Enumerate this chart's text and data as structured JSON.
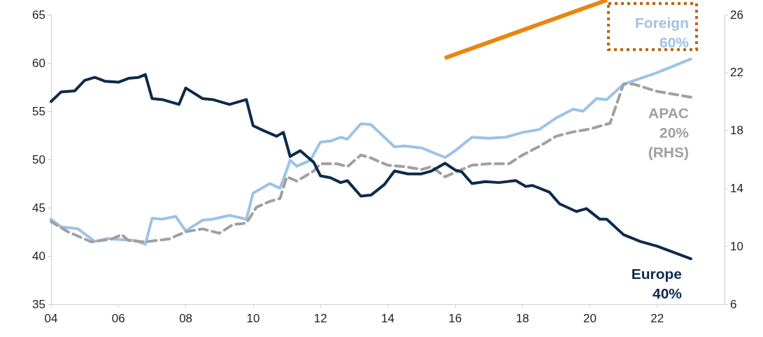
{
  "chart_data": {
    "type": "line",
    "xlim": [
      2004,
      2024
    ],
    "xticks": [
      {
        "value": 2004,
        "label": "04"
      },
      {
        "value": 2006,
        "label": "06"
      },
      {
        "value": 2008,
        "label": "08"
      },
      {
        "value": 2010,
        "label": "10"
      },
      {
        "value": 2012,
        "label": "12"
      },
      {
        "value": 2014,
        "label": "14"
      },
      {
        "value": 2016,
        "label": "16"
      },
      {
        "value": 2018,
        "label": "18"
      },
      {
        "value": 2020,
        "label": "20"
      },
      {
        "value": 2022,
        "label": "22"
      }
    ],
    "ylim": [
      35,
      65
    ],
    "yticks": [
      35,
      40,
      45,
      50,
      55,
      60,
      65
    ],
    "y2lim": [
      6,
      26
    ],
    "y2ticks": [
      6,
      10,
      14,
      18,
      22,
      26
    ],
    "grid": false,
    "marker": "none",
    "series": [
      {
        "name": "Foreign\n60%",
        "color": "#9dc3e6",
        "line_style": "solid",
        "x": [
          2004.0,
          2004.3,
          2004.8,
          2005.3,
          2005.7,
          2006.0,
          2006.5,
          2006.8,
          2007.0,
          2007.3,
          2007.7,
          2008.0,
          2008.5,
          2008.8,
          2009.3,
          2009.8,
          2010.0,
          2010.5,
          2010.8,
          2011.1,
          2011.3,
          2011.7,
          2012.0,
          2012.3,
          2012.6,
          2012.8,
          2013.2,
          2013.5,
          2014.2,
          2014.5,
          2015.0,
          2015.7,
          2016.0,
          2016.5,
          2017.0,
          2017.5,
          2018.0,
          2018.5,
          2019.0,
          2019.5,
          2019.8,
          2020.2,
          2020.5,
          2021.0,
          2022.0,
          2023.0
        ],
        "values": [
          43.8,
          43.0,
          42.8,
          41.5,
          41.8,
          41.7,
          41.6,
          41.2,
          43.9,
          43.8,
          44.1,
          42.6,
          43.7,
          43.8,
          44.2,
          43.8,
          46.5,
          47.5,
          47.0,
          49.9,
          49.3,
          49.9,
          51.8,
          51.9,
          52.3,
          52.1,
          53.7,
          53.6,
          51.3,
          51.4,
          51.2,
          50.2,
          50.9,
          52.3,
          52.2,
          52.3,
          52.8,
          53.1,
          54.3,
          55.2,
          55.0,
          56.3,
          56.2,
          57.8,
          59.0,
          60.4
        ]
      },
      {
        "name": "APAC\n20%\n(RHS)",
        "color": "#a0a0a0",
        "line_style": "dashed",
        "axis": "y2",
        "x": [
          2004.0,
          2004.5,
          2005.2,
          2005.8,
          2006.1,
          2006.3,
          2006.8,
          2007.5,
          2008.0,
          2008.5,
          2009.0,
          2009.4,
          2009.8,
          2010.1,
          2010.5,
          2010.8,
          2011.0,
          2011.3,
          2011.8,
          2012.0,
          2012.5,
          2012.8,
          2013.2,
          2013.5,
          2014.0,
          2014.5,
          2015.0,
          2015.3,
          2015.7,
          2016.0,
          2016.5,
          2017.0,
          2017.6,
          2018.0,
          2018.5,
          2019.0,
          2019.5,
          2020.0,
          2020.6,
          2021.0,
          2021.3,
          2022.0,
          2023.0
        ],
        "values": [
          11.7,
          11.0,
          10.3,
          10.5,
          10.8,
          10.4,
          10.3,
          10.5,
          11.0,
          11.2,
          10.9,
          11.5,
          11.6,
          12.7,
          13.1,
          13.3,
          14.8,
          14.5,
          15.2,
          15.7,
          15.7,
          15.5,
          16.3,
          16.1,
          15.6,
          15.5,
          15.3,
          15.5,
          14.8,
          15.1,
          15.6,
          15.7,
          15.7,
          16.3,
          16.9,
          17.6,
          17.9,
          18.1,
          18.5,
          21.2,
          21.2,
          20.7,
          20.3
        ]
      },
      {
        "name": "Europe\n40%",
        "color": "#0d2a4a",
        "line_style": "solid",
        "x": [
          2004.0,
          2004.3,
          2004.7,
          2005.0,
          2005.3,
          2005.6,
          2006.0,
          2006.3,
          2006.6,
          2006.8,
          2007.0,
          2007.3,
          2007.8,
          2008.0,
          2008.5,
          2008.8,
          2009.3,
          2009.8,
          2010.0,
          2010.3,
          2010.7,
          2010.9,
          2011.1,
          2011.4,
          2011.8,
          2012.0,
          2012.3,
          2012.6,
          2012.8,
          2013.2,
          2013.5,
          2013.9,
          2014.2,
          2014.6,
          2015.0,
          2015.3,
          2015.7,
          2016.0,
          2016.2,
          2016.5,
          2016.9,
          2017.3,
          2017.8,
          2018.1,
          2018.3,
          2018.8,
          2019.1,
          2019.6,
          2019.9,
          2020.3,
          2020.5,
          2021.0,
          2021.5,
          2022.0,
          2023.0
        ],
        "values": [
          56.0,
          57.0,
          57.1,
          58.2,
          58.5,
          58.1,
          58.0,
          58.4,
          58.5,
          58.8,
          56.3,
          56.2,
          55.7,
          57.4,
          56.3,
          56.2,
          55.7,
          56.2,
          53.5,
          53.0,
          52.4,
          52.8,
          50.3,
          50.9,
          49.7,
          48.3,
          48.1,
          47.6,
          47.8,
          46.2,
          46.3,
          47.4,
          48.8,
          48.5,
          48.5,
          48.8,
          49.6,
          48.9,
          48.7,
          47.5,
          47.7,
          47.6,
          47.8,
          47.2,
          47.3,
          46.6,
          45.4,
          44.6,
          44.9,
          43.8,
          43.8,
          42.2,
          41.5,
          41.0,
          39.7
        ]
      }
    ]
  }
}
